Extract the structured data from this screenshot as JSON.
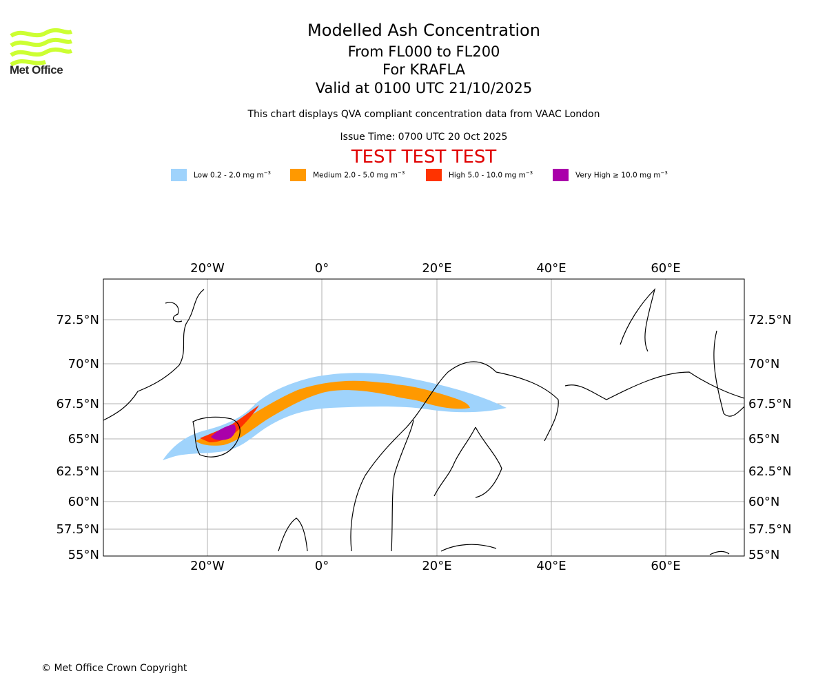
{
  "brand": {
    "logo_text": "Met Office",
    "logo_color": "#ccff33"
  },
  "header": {
    "title": "Modelled Ash Concentration",
    "subtitle1": "From FL000 to FL200",
    "subtitle2": "For KRAFLA",
    "subtitle3": "Valid at 0100 UTC 21/10/2025",
    "description": "This chart displays QVA compliant concentration data from VAAC London",
    "issue_time": "Issue Time: 0700 UTC 20 Oct 2025",
    "test_banner": "TEST TEST TEST"
  },
  "legend": [
    {
      "label": "Low 0.2 - 2.0 mg m",
      "color": "#9fd3fc"
    },
    {
      "label": "Medium 2.0 - 5.0 mg m",
      "color": "#ff9900"
    },
    {
      "label": "High 5.0 - 10.0 mg m",
      "color": "#ff3300"
    },
    {
      "label": "Very High ≥ 10.0 mg m",
      "color": "#aa00aa"
    }
  ],
  "legend_unit_exp": "−3",
  "map": {
    "lon_labels": [
      "20°W",
      "0°",
      "20°E",
      "40°E",
      "60°E"
    ],
    "lat_labels": [
      "72.5°N",
      "70°N",
      "67.5°N",
      "65°N",
      "62.5°N",
      "60°N",
      "57.5°N",
      "55°N"
    ],
    "gridline_color": "#b0b0b0"
  },
  "footer": {
    "copyright": "© Met Office Crown Copyright"
  }
}
